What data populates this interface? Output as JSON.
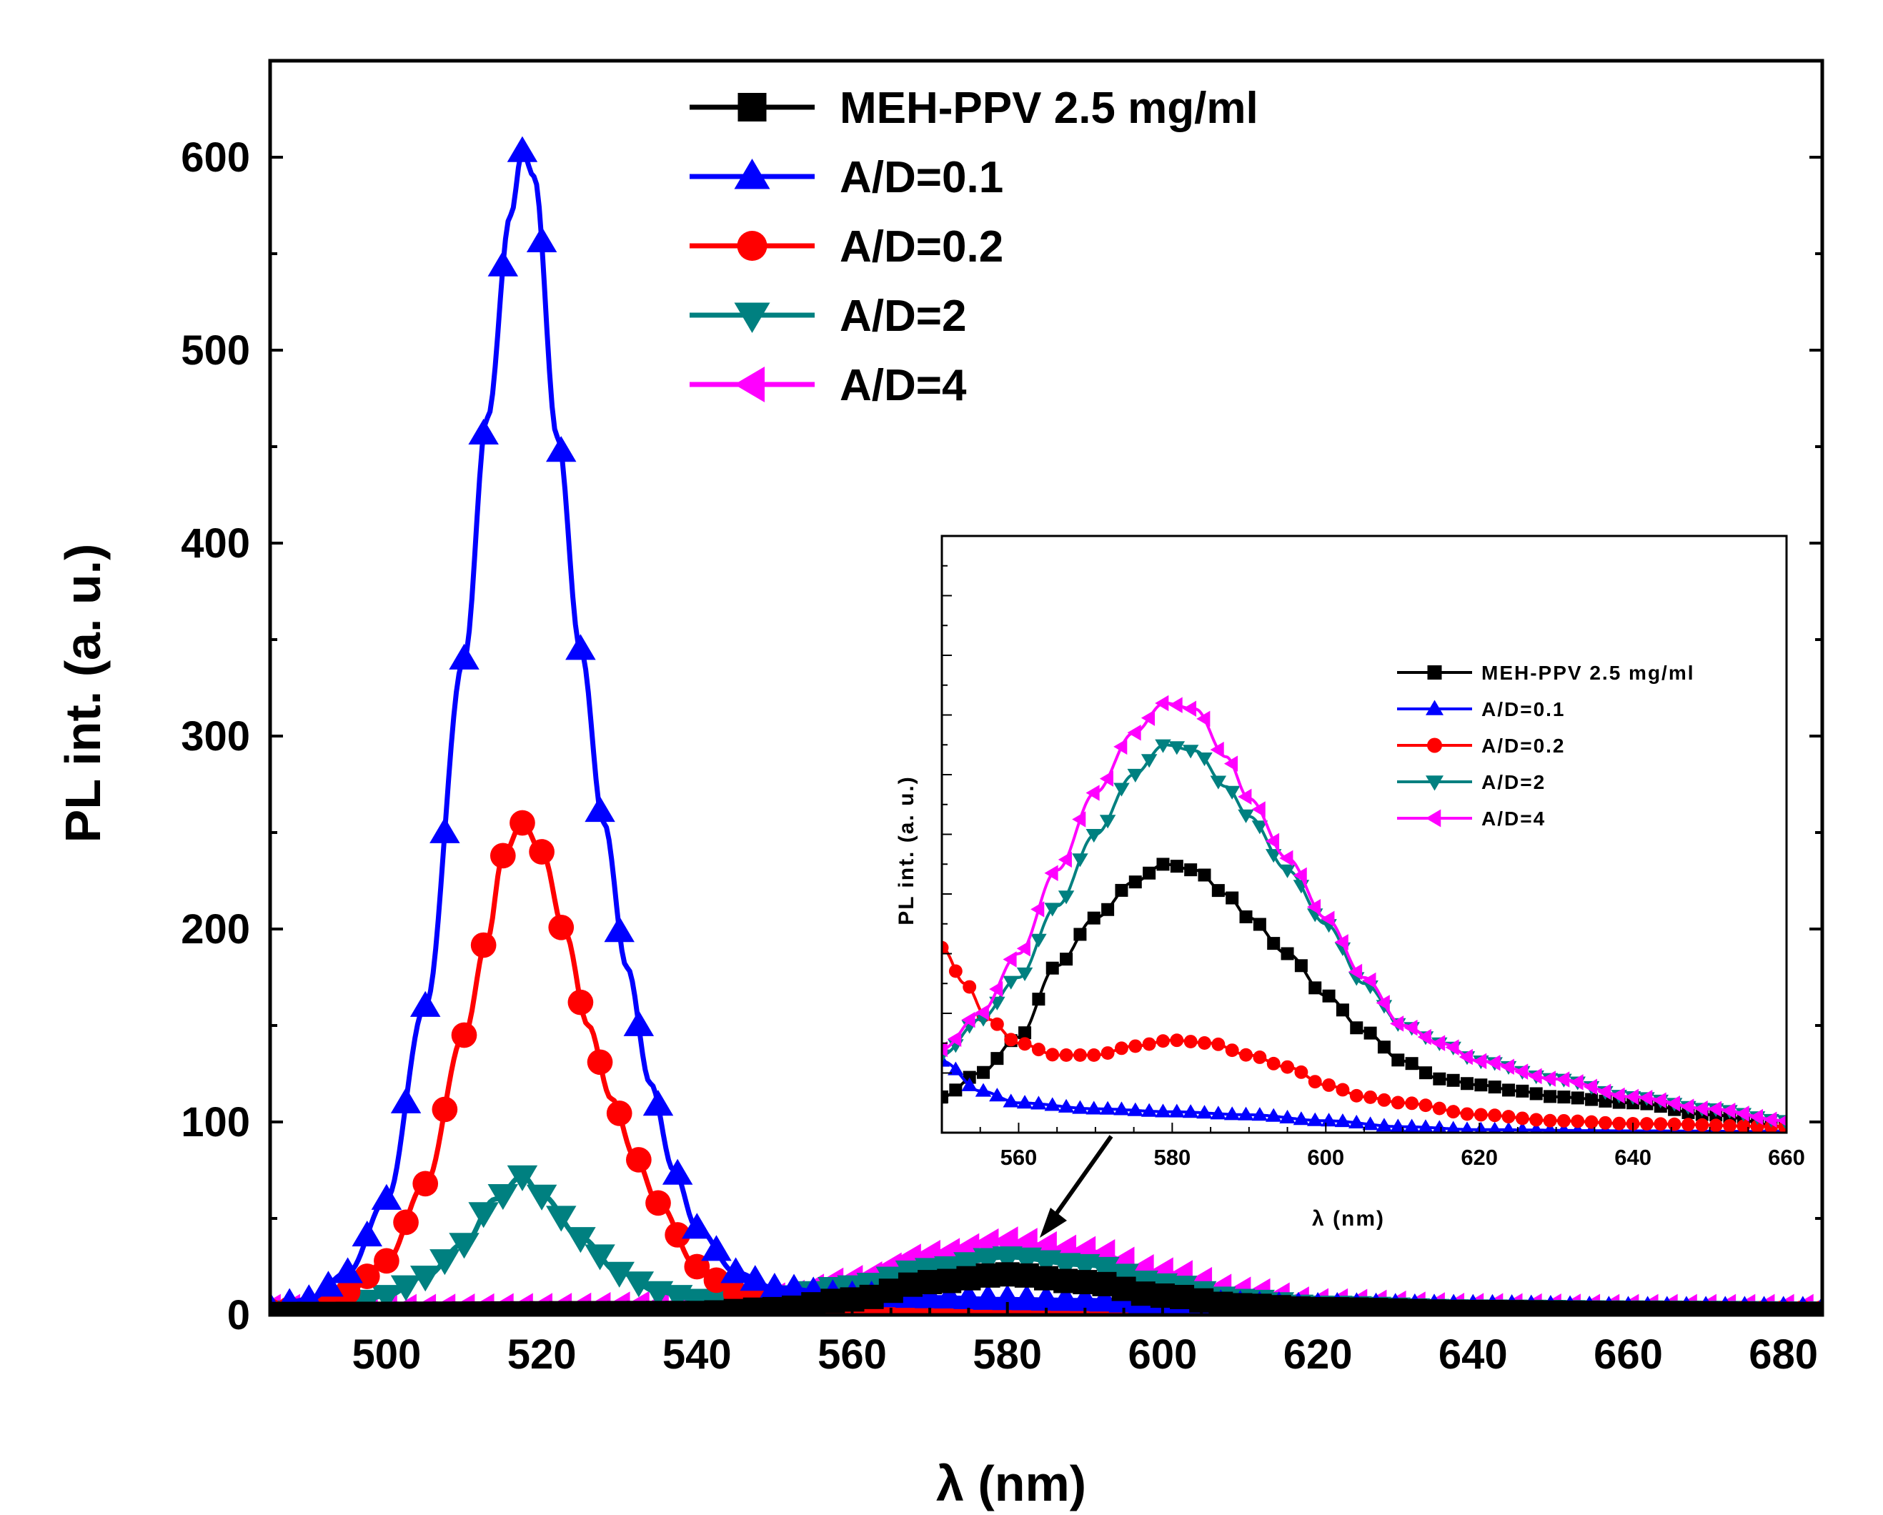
{
  "chart_data": [
    {
      "id": "main",
      "type": "line",
      "title": "",
      "xlabel": "λ (nm)",
      "ylabel": "PL int. (a. u.)",
      "xlim": [
        485,
        685
      ],
      "ylim": [
        0,
        650
      ],
      "xticks": [
        500,
        520,
        540,
        560,
        580,
        600,
        620,
        640,
        660,
        680
      ],
      "xtick_labels": [
        "500",
        "520",
        "540",
        "560",
        "580",
        "600",
        "620",
        "640",
        "660",
        "680"
      ],
      "yticks": [
        0,
        100,
        200,
        300,
        400,
        500,
        600
      ],
      "ytick_labels": [
        "0",
        "100",
        "200",
        "300",
        "400",
        "500",
        "600"
      ],
      "legend_position": "top-center",
      "series": [
        {
          "key": "meh",
          "name": "MEH-PPV 2.5 mg/ml",
          "color": "#000000",
          "marker": "square",
          "marker_step": 2.5,
          "points": [
            [
              485,
              0.5
            ],
            [
              540,
              1
            ],
            [
              550,
              3
            ],
            [
              560,
              8
            ],
            [
              570,
              17
            ],
            [
              580,
              21
            ],
            [
              590,
              17
            ],
            [
              600,
              10
            ],
            [
              610,
              5
            ],
            [
              620,
              3
            ],
            [
              640,
              1.5
            ],
            [
              660,
              1
            ],
            [
              685,
              0.5
            ]
          ]
        },
        {
          "key": "ad01",
          "name": "A/D=0.1",
          "color": "#0000ff",
          "marker": "triangle-up",
          "marker_step": 2.5,
          "points": [
            [
              485,
              4
            ],
            [
              490,
              8
            ],
            [
              495,
              22
            ],
            [
              500,
              60
            ],
            [
              505,
              160
            ],
            [
              510,
              340
            ],
            [
              513,
              465
            ],
            [
              516,
              570
            ],
            [
              517.5,
              603
            ],
            [
              519,
              590
            ],
            [
              522,
              455
            ],
            [
              525,
              345
            ],
            [
              528,
              255
            ],
            [
              531,
              180
            ],
            [
              534,
              120
            ],
            [
              537,
              75
            ],
            [
              540,
              45
            ],
            [
              545,
              22
            ],
            [
              550,
              14
            ],
            [
              560,
              10
            ],
            [
              570,
              9
            ],
            [
              580,
              8
            ],
            [
              590,
              7.5
            ],
            [
              600,
              6
            ],
            [
              620,
              4
            ],
            [
              640,
              3
            ],
            [
              660,
              2
            ],
            [
              685,
              2
            ]
          ]
        },
        {
          "key": "ad02",
          "name": "A/D=0.2",
          "color": "#ff0000",
          "marker": "circle",
          "marker_step": 2.5,
          "points": [
            [
              485,
              2
            ],
            [
              490,
              4
            ],
            [
              495,
              12
            ],
            [
              500,
              28
            ],
            [
              505,
              68
            ],
            [
              510,
              145
            ],
            [
              513,
              195
            ],
            [
              515,
              238
            ],
            [
              517.5,
              255
            ],
            [
              520,
              240
            ],
            [
              523,
              198
            ],
            [
              526,
              150
            ],
            [
              529,
              112
            ],
            [
              532,
              82
            ],
            [
              535,
              58
            ],
            [
              540,
              25
            ],
            [
              545,
              11
            ],
            [
              550,
              6
            ],
            [
              560,
              4
            ],
            [
              570,
              4
            ],
            [
              580,
              4
            ],
            [
              590,
              3.5
            ],
            [
              600,
              3
            ],
            [
              620,
              2
            ],
            [
              640,
              1.5
            ],
            [
              660,
              1
            ],
            [
              685,
              1
            ]
          ]
        },
        {
          "key": "ad2",
          "name": "A/D=2",
          "color": "#008080",
          "marker": "triangle-down",
          "marker_step": 2.5,
          "points": [
            [
              485,
              1.5
            ],
            [
              490,
              2.5
            ],
            [
              495,
              5
            ],
            [
              500,
              10
            ],
            [
              505,
              20
            ],
            [
              510,
              37
            ],
            [
              514,
              60
            ],
            [
              517.5,
              72
            ],
            [
              520,
              62
            ],
            [
              525,
              40
            ],
            [
              530,
              22
            ],
            [
              535,
              12
            ],
            [
              540,
              8
            ],
            [
              545,
              7
            ],
            [
              550,
              9
            ],
            [
              560,
              15
            ],
            [
              570,
              24
            ],
            [
              580,
              30
            ],
            [
              590,
              26
            ],
            [
              600,
              16
            ],
            [
              610,
              8
            ],
            [
              620,
              4.5
            ],
            [
              640,
              2.5
            ],
            [
              660,
              2
            ],
            [
              685,
              1.5
            ]
          ]
        },
        {
          "key": "ad4",
          "name": "A/D=4",
          "color": "#ff00ff",
          "marker": "triangle-left",
          "marker_step": 2.5,
          "points": [
            [
              485,
              3
            ],
            [
              500,
              3
            ],
            [
              520,
              3.5
            ],
            [
              540,
              5
            ],
            [
              550,
              9
            ],
            [
              560,
              18
            ],
            [
              570,
              31
            ],
            [
              580,
              38
            ],
            [
              590,
              33
            ],
            [
              600,
              22
            ],
            [
              610,
              12
            ],
            [
              620,
              6
            ],
            [
              640,
              3.5
            ],
            [
              660,
              3
            ],
            [
              685,
              3
            ]
          ]
        }
      ]
    },
    {
      "id": "inset",
      "type": "line",
      "title": "",
      "xlabel": "λ (nm)",
      "ylabel": "PL int. (a. u.)",
      "xlim": [
        550,
        660
      ],
      "ylim": [
        0,
        100
      ],
      "xticks": [
        560,
        580,
        600,
        620,
        640,
        660
      ],
      "xtick_labels": [
        "560",
        "580",
        "600",
        "620",
        "640",
        "660"
      ],
      "legend_position": "upper-right",
      "series": [
        {
          "key": "meh",
          "name": "MEH-PPV 2.5 mg/ml",
          "color": "#000000",
          "marker": "square",
          "marker_step": 1.8,
          "points": [
            [
              550,
              6
            ],
            [
              555,
              10
            ],
            [
              560,
              16
            ],
            [
              565,
              28
            ],
            [
              570,
              36
            ],
            [
              575,
              42
            ],
            [
              579,
              45
            ],
            [
              583,
              44
            ],
            [
              587,
              40
            ],
            [
              590,
              36
            ],
            [
              595,
              30
            ],
            [
              600,
              23
            ],
            [
              605,
              17
            ],
            [
              610,
              12
            ],
            [
              615,
              9
            ],
            [
              620,
              8
            ],
            [
              625,
              7
            ],
            [
              630,
              6
            ],
            [
              640,
              5
            ],
            [
              650,
              3
            ],
            [
              660,
              1
            ]
          ]
        },
        {
          "key": "ad01",
          "name": "A/D=0.1",
          "color": "#0000ff",
          "marker": "triangle-up",
          "marker_step": 1.8,
          "points": [
            [
              550,
              12
            ],
            [
              555,
              7
            ],
            [
              560,
              5
            ],
            [
              570,
              4
            ],
            [
              580,
              3.5
            ],
            [
              590,
              3
            ],
            [
              600,
              2
            ],
            [
              610,
              1
            ],
            [
              620,
              0.5
            ],
            [
              640,
              0.3
            ],
            [
              660,
              0.2
            ]
          ]
        },
        {
          "key": "ad02",
          "name": "A/D=0.2",
          "color": "#ff0000",
          "marker": "circle",
          "marker_step": 1.8,
          "points": [
            [
              550,
              31
            ],
            [
              553,
              25
            ],
            [
              556,
              19
            ],
            [
              560,
              15
            ],
            [
              565,
              13
            ],
            [
              570,
              13
            ],
            [
              575,
              14.5
            ],
            [
              580,
              15.5
            ],
            [
              585,
              15
            ],
            [
              590,
              13
            ],
            [
              595,
              11
            ],
            [
              600,
              8
            ],
            [
              605,
              6
            ],
            [
              610,
              5
            ],
            [
              620,
              3
            ],
            [
              630,
              2
            ],
            [
              640,
              1.5
            ],
            [
              660,
              1
            ]
          ]
        },
        {
          "key": "ad2",
          "name": "A/D=2",
          "color": "#008080",
          "marker": "triangle-down",
          "marker_step": 1.8,
          "points": [
            [
              550,
              13
            ],
            [
              555,
              19
            ],
            [
              560,
              26
            ],
            [
              565,
              38
            ],
            [
              570,
              50
            ],
            [
              575,
              60
            ],
            [
              579,
              65
            ],
            [
              583,
              64
            ],
            [
              587,
              58
            ],
            [
              590,
              53
            ],
            [
              595,
              44
            ],
            [
              600,
              35
            ],
            [
              605,
              25
            ],
            [
              610,
              18
            ],
            [
              615,
              15
            ],
            [
              620,
              12
            ],
            [
              630,
              9
            ],
            [
              640,
              6
            ],
            [
              650,
              4
            ],
            [
              660,
              2
            ]
          ]
        },
        {
          "key": "ad4",
          "name": "A/D=4",
          "color": "#ff00ff",
          "marker": "triangle-left",
          "marker_step": 1.8,
          "points": [
            [
              550,
              14
            ],
            [
              555,
              20
            ],
            [
              560,
              30
            ],
            [
              565,
              44
            ],
            [
              570,
              57
            ],
            [
              575,
              67
            ],
            [
              579,
              72
            ],
            [
              583,
              71
            ],
            [
              587,
              63
            ],
            [
              590,
              56
            ],
            [
              595,
              46
            ],
            [
              600,
              36
            ],
            [
              605,
              26
            ],
            [
              610,
              18
            ],
            [
              615,
              15
            ],
            [
              620,
              12
            ],
            [
              630,
              9
            ],
            [
              640,
              6
            ],
            [
              650,
              4
            ],
            [
              660,
              2
            ]
          ]
        }
      ]
    }
  ]
}
